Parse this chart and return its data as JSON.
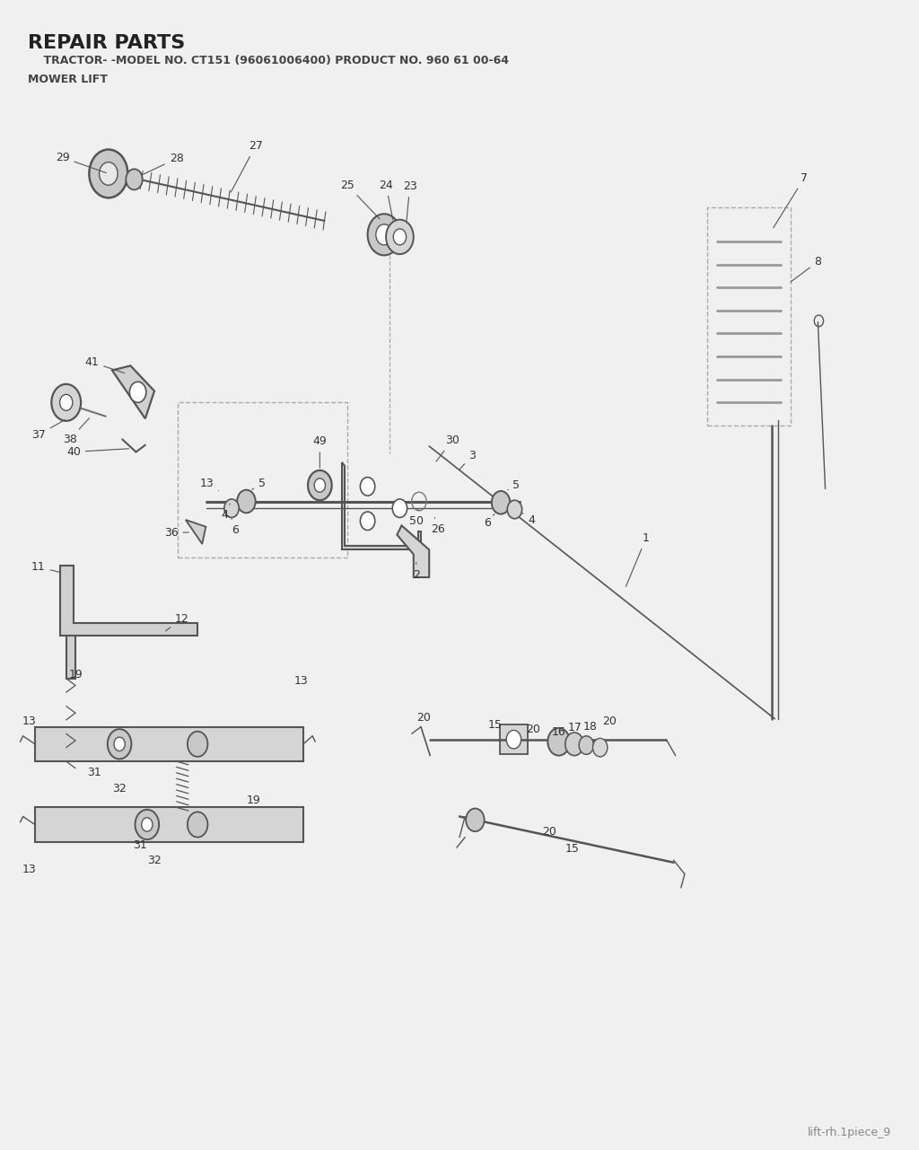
{
  "title": "REPAIR PARTS",
  "subtitle": "    TRACTOR- -MODEL NO. CT151 (96061006400) PRODUCT NO. 960 61 00-64",
  "subtitle2": "MOWER LIFT",
  "footer": "lift-rh.1piece_9",
  "bg_color": "#f0f0f0",
  "line_color": "#555555",
  "text_color": "#333333",
  "dark_gray": "#888888",
  "part_color": "#c8c8c8"
}
